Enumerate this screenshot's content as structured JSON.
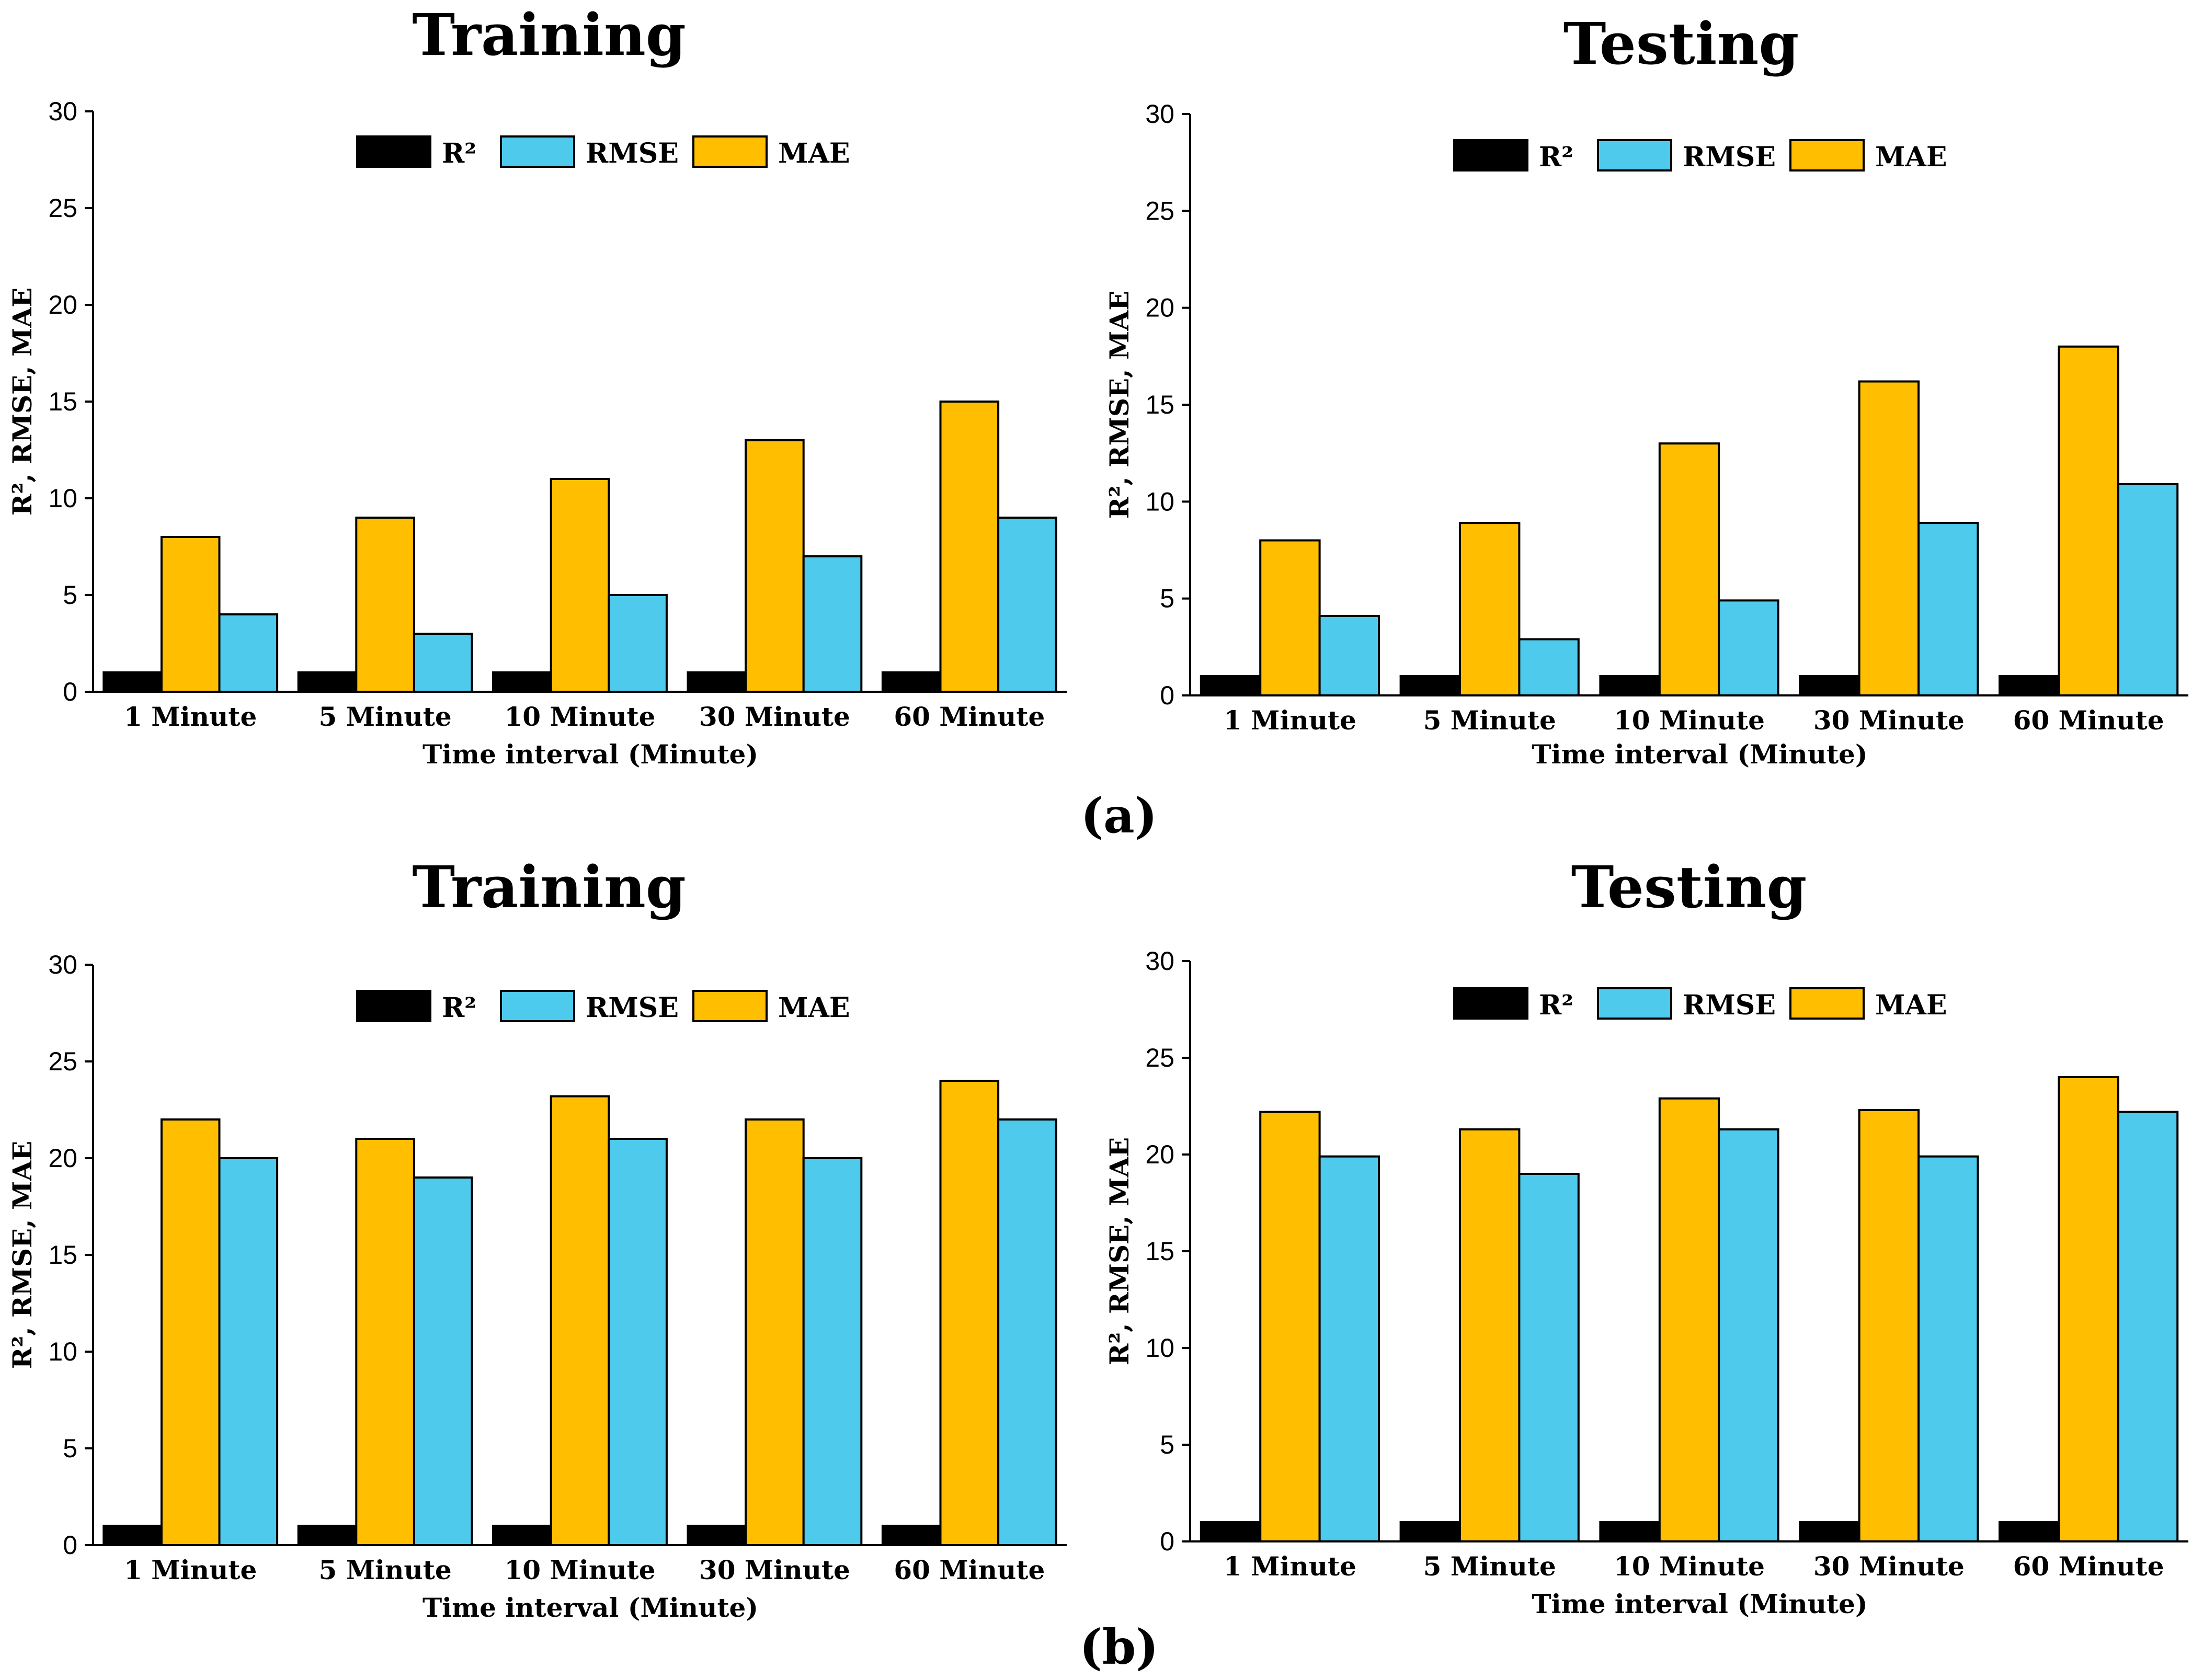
{
  "colors": {
    "R2": "#000000",
    "RMSE": "#4ecaec",
    "MAE": "#ffbf00"
  },
  "panel_labels": [
    "(a)",
    "(b)"
  ],
  "chart_data": [
    {
      "type": "bar",
      "title": "Training",
      "panel": "(a)",
      "xlabel": "Time interval (Minute)",
      "ylabel": "R², RMSE, MAE",
      "ylim": [
        0,
        30
      ],
      "yticks": [
        "0",
        "5",
        "10",
        "15",
        "20",
        "25",
        "30"
      ],
      "categories": [
        "1 Minute",
        "5 Minute",
        "10 Minute",
        "30 Minute",
        "60 Minute"
      ],
      "legend": [
        "R²",
        "RMSE",
        "MAE"
      ],
      "series": [
        {
          "name": "R2",
          "values": [
            1,
            1,
            1,
            1,
            1
          ]
        },
        {
          "name": "MAE",
          "values": [
            8,
            9,
            11,
            13,
            15
          ]
        },
        {
          "name": "RMSE",
          "values": [
            4,
            3,
            5,
            7,
            9
          ]
        }
      ]
    },
    {
      "type": "bar",
      "title": "Testing",
      "panel": "(a)",
      "xlabel": "Time interval (Minute)",
      "ylabel": "R², RMSE, MAE",
      "ylim": [
        0,
        30
      ],
      "yticks": [
        "0",
        "5",
        "10",
        "15",
        "20",
        "25",
        "30"
      ],
      "categories": [
        "1 Minute",
        "5 Minute",
        "10 Minute",
        "30 Minute",
        "60 Minute"
      ],
      "legend": [
        "R²",
        "RMSE",
        "MAE"
      ],
      "series": [
        {
          "name": "R2",
          "values": [
            1,
            1,
            1,
            1,
            1
          ]
        },
        {
          "name": "MAE",
          "values": [
            8,
            8.9,
            13,
            16.2,
            18
          ]
        },
        {
          "name": "RMSE",
          "values": [
            4.1,
            2.9,
            4.9,
            8.9,
            10.9
          ]
        }
      ]
    },
    {
      "type": "bar",
      "title": "Training",
      "panel": "(b)",
      "xlabel": "Time interval (Minute)",
      "ylabel": "R², RMSE, MAE",
      "ylim": [
        0,
        30
      ],
      "yticks": [
        "0",
        "5",
        "10",
        "15",
        "20",
        "25",
        "30"
      ],
      "categories": [
        "1 Minute",
        "5 Minute",
        "10 Minute",
        "30 Minute",
        "60 Minute"
      ],
      "legend": [
        "R²",
        "RMSE",
        "MAE"
      ],
      "series": [
        {
          "name": "R2",
          "values": [
            1,
            1,
            1,
            1,
            1
          ]
        },
        {
          "name": "MAE",
          "values": [
            22,
            21,
            23.2,
            22,
            24
          ]
        },
        {
          "name": "RMSE",
          "values": [
            20,
            19,
            21,
            20,
            22
          ]
        }
      ]
    },
    {
      "type": "bar",
      "title": "Testing",
      "panel": "(b)",
      "xlabel": "Time interval (Minute)",
      "ylabel": "R², RMSE, MAE",
      "ylim": [
        0,
        30
      ],
      "yticks": [
        "0",
        "5",
        "10",
        "15",
        "20",
        "25",
        "30"
      ],
      "categories": [
        "1 Minute",
        "5 Minute",
        "10 Minute",
        "30 Minute",
        "60 Minute"
      ],
      "legend": [
        "R²",
        "RMSE",
        "MAE"
      ],
      "series": [
        {
          "name": "R2",
          "values": [
            1,
            1,
            1,
            1,
            1
          ]
        },
        {
          "name": "MAE",
          "values": [
            22.2,
            21.3,
            22.9,
            22.3,
            24
          ]
        },
        {
          "name": "RMSE",
          "values": [
            19.9,
            19,
            21.3,
            19.9,
            22.2
          ]
        }
      ]
    }
  ]
}
